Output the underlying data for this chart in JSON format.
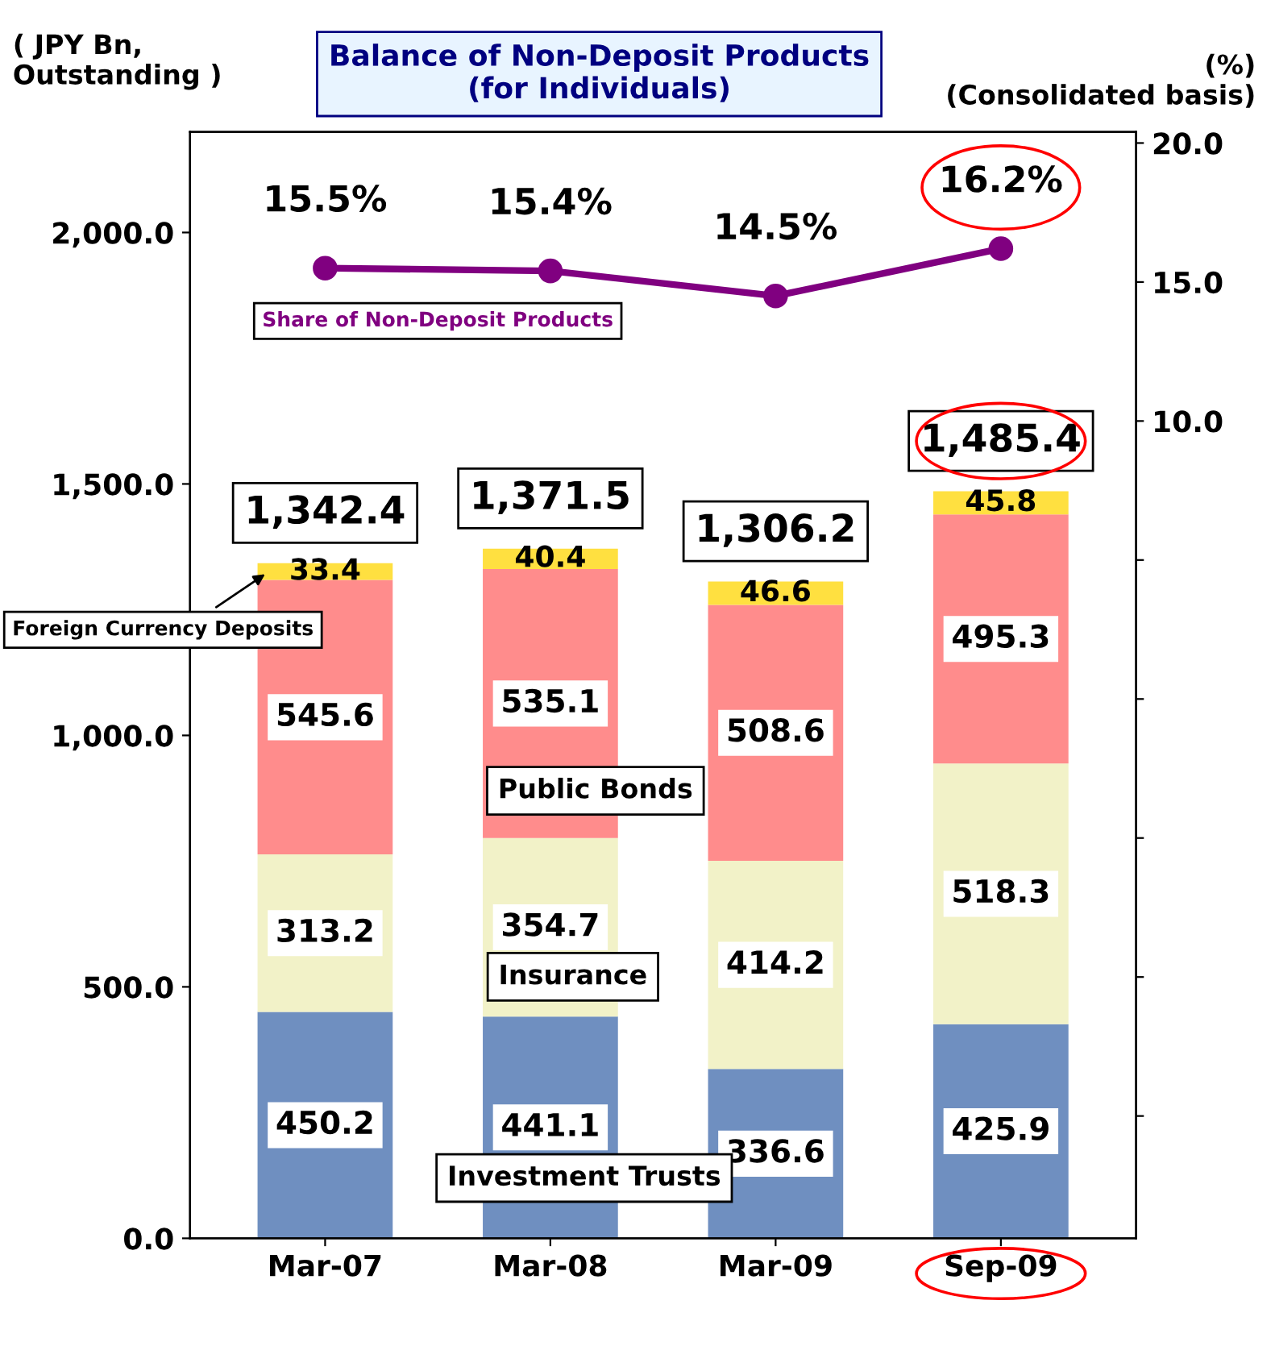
{
  "chart_data": {
    "type": "bar",
    "stacked": true,
    "title": "Balance of Non-Deposit Products\n(for Individuals)",
    "ylabel": "( JPY Bn,\nOutstanding )",
    "y2label": "(%)\n(Consolidated basis)",
    "categories": [
      "Mar-07",
      "Mar-08",
      "Mar-09",
      "Sep-09"
    ],
    "series": [
      {
        "name": "Investment Trusts",
        "color": "#6f8fc0",
        "values": [
          450.2,
          441.1,
          336.6,
          425.9
        ],
        "value_labels": [
          "450.2",
          "441.1",
          "336.6",
          "425.9"
        ]
      },
      {
        "name": "Insurance",
        "color": "#f2f2c8",
        "values": [
          313.2,
          354.7,
          414.2,
          518.3
        ],
        "value_labels": [
          "313.2",
          "354.7",
          "414.2",
          "518.3"
        ]
      },
      {
        "name": "Public Bonds",
        "color": "#ff8c8c",
        "values": [
          545.6,
          535.1,
          508.6,
          495.3
        ],
        "value_labels": [
          "545.6",
          "535.1",
          "508.6",
          "495.3"
        ]
      },
      {
        "name": "Foreign Currency Deposits",
        "color": "#ffe040",
        "values": [
          33.4,
          40.4,
          46.6,
          45.8
        ],
        "value_labels": [
          "33.4",
          "40.4",
          "46.6",
          "45.8"
        ]
      },
      {
        "name": "Share of Non-Deposit Products",
        "type": "line",
        "axis": "y2",
        "color": "#800080",
        "marker": "circle",
        "values": [
          15.5,
          15.4,
          14.5,
          16.2
        ],
        "value_labels": [
          "15.5%",
          "15.4%",
          "14.5%",
          "16.2%"
        ]
      }
    ],
    "totals": [
      "1,342.4",
      "1,371.5",
      "1,306.2",
      "1,485.4"
    ],
    "ylim": [
      0,
      2200
    ],
    "yticks": [
      {
        "value": 0,
        "label": "0.0"
      },
      {
        "value": 500,
        "label": "500.0"
      },
      {
        "value": 1000,
        "label": "1,000.0"
      },
      {
        "value": 1500,
        "label": "1,500.0"
      },
      {
        "value": 2000,
        "label": "2,000.0"
      }
    ],
    "y2lim": [
      -19.4,
      20.4
    ],
    "y2ticks": [
      {
        "value": -15,
        "label": null
      },
      {
        "value": -10,
        "label": null
      },
      {
        "value": -5,
        "label": null
      },
      {
        "value": 0,
        "label": null
      },
      {
        "value": 5,
        "label": null
      },
      {
        "value": 10,
        "label": "10.0"
      },
      {
        "value": 15,
        "label": "15.0"
      },
      {
        "value": 20,
        "label": "20.0"
      }
    ],
    "grid": false,
    "legend": false
  }
}
